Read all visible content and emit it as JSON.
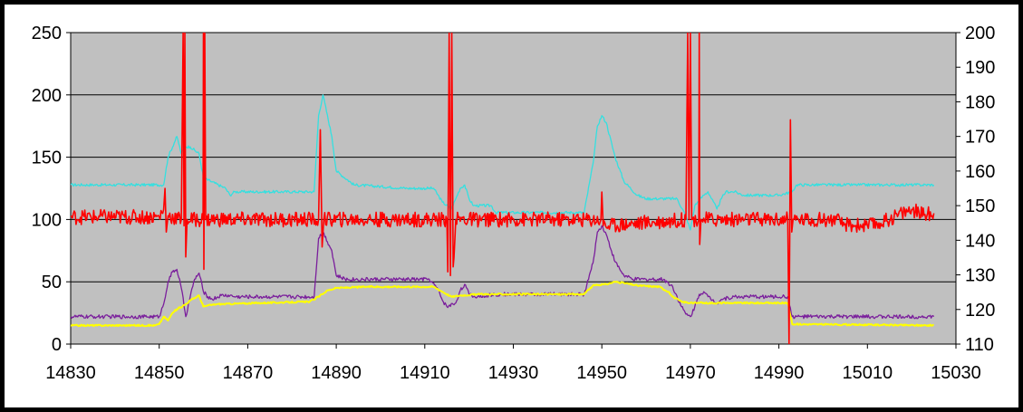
{
  "chart_data": {
    "type": "line",
    "title": "",
    "xlabel": "",
    "ylabel": "",
    "y2label": "",
    "grid": "horizontal",
    "legend": "none",
    "background_color": "#c0c0c0",
    "xlim": [
      14830,
      15030
    ],
    "ylim": [
      0,
      250
    ],
    "y2lim": [
      110,
      200
    ],
    "x_ticks": [
      "14830",
      "14850",
      "14870",
      "14890",
      "14910",
      "14930",
      "14950",
      "14970",
      "14990",
      "15010",
      "15030"
    ],
    "y_ticks": [
      "0",
      "50",
      "100",
      "150",
      "200",
      "250"
    ],
    "y2_ticks": [
      "110",
      "120",
      "130",
      "140",
      "150",
      "160",
      "170",
      "180",
      "190",
      "200"
    ],
    "series": [
      {
        "id": "cyan",
        "color": "#33e0e0",
        "axis": "right",
        "noise": 0.4,
        "points": [
          [
            14830,
            156
          ],
          [
            14851,
            156
          ],
          [
            14852,
            164
          ],
          [
            14854,
            170
          ],
          [
            14855,
            165
          ],
          [
            14856,
            167
          ],
          [
            14857,
            167
          ],
          [
            14859,
            165
          ],
          [
            14860,
            158
          ],
          [
            14865,
            155
          ],
          [
            14866,
            153
          ],
          [
            14867,
            154
          ],
          [
            14885,
            154
          ],
          [
            14886,
            176
          ],
          [
            14887,
            182
          ],
          [
            14889,
            170
          ],
          [
            14890,
            160
          ],
          [
            14894,
            156
          ],
          [
            14906,
            155
          ],
          [
            14912,
            155
          ],
          [
            14914,
            151
          ],
          [
            14916,
            149
          ],
          [
            14917,
            152
          ],
          [
            14918,
            155
          ],
          [
            14919,
            156
          ],
          [
            14920,
            152
          ],
          [
            14921,
            150
          ],
          [
            14925,
            150
          ],
          [
            14926,
            148
          ],
          [
            14946,
            148
          ],
          [
            14948,
            162
          ],
          [
            14949,
            173
          ],
          [
            14950,
            176
          ],
          [
            14951,
            174
          ],
          [
            14953,
            164
          ],
          [
            14955,
            157
          ],
          [
            14958,
            153
          ],
          [
            14960,
            152
          ],
          [
            14967,
            152
          ],
          [
            14969,
            147
          ],
          [
            14970,
            143
          ],
          [
            14971,
            150
          ],
          [
            14973,
            153
          ],
          [
            14974,
            154
          ],
          [
            14976,
            149
          ],
          [
            14977,
            152
          ],
          [
            14978,
            154
          ],
          [
            14980,
            154
          ],
          [
            14982,
            153
          ],
          [
            14990,
            153
          ],
          [
            14993,
            154
          ],
          [
            14994,
            156
          ],
          [
            15025,
            156
          ]
        ]
      },
      {
        "id": "purple",
        "color": "#7a1e9c",
        "axis": "left",
        "noise": 1.5,
        "points": [
          [
            14830,
            22
          ],
          [
            14850,
            22
          ],
          [
            14851,
            32
          ],
          [
            14852,
            50
          ],
          [
            14853,
            58
          ],
          [
            14854,
            60
          ],
          [
            14855,
            45
          ],
          [
            14856,
            22
          ],
          [
            14857,
            38
          ],
          [
            14858,
            52
          ],
          [
            14859,
            57
          ],
          [
            14860,
            42
          ],
          [
            14861,
            38
          ],
          [
            14862,
            36
          ],
          [
            14864,
            39
          ],
          [
            14866,
            39
          ],
          [
            14867,
            38
          ],
          [
            14885,
            38
          ],
          [
            14886,
            85
          ],
          [
            14887,
            90
          ],
          [
            14889,
            75
          ],
          [
            14890,
            55
          ],
          [
            14892,
            52
          ],
          [
            14907,
            52
          ],
          [
            14911,
            52
          ],
          [
            14913,
            44
          ],
          [
            14914,
            35
          ],
          [
            14915,
            30
          ],
          [
            14917,
            33
          ],
          [
            14918,
            43
          ],
          [
            14919,
            48
          ],
          [
            14920,
            40
          ],
          [
            14921,
            38
          ],
          [
            14927,
            40
          ],
          [
            14946,
            40
          ],
          [
            14948,
            65
          ],
          [
            14949,
            90
          ],
          [
            14950,
            95
          ],
          [
            14951,
            88
          ],
          [
            14953,
            66
          ],
          [
            14955,
            55
          ],
          [
            14957,
            52
          ],
          [
            14960,
            52
          ],
          [
            14964,
            52
          ],
          [
            14966,
            46
          ],
          [
            14968,
            30
          ],
          [
            14969,
            24
          ],
          [
            14970,
            22
          ],
          [
            14971,
            30
          ],
          [
            14972,
            40
          ],
          [
            14973,
            42
          ],
          [
            14974,
            38
          ],
          [
            14976,
            33
          ],
          [
            14977,
            36
          ],
          [
            14980,
            38
          ],
          [
            14992,
            38
          ],
          [
            14993,
            22
          ],
          [
            15025,
            22
          ]
        ]
      },
      {
        "id": "yellow",
        "color": "#ffff00",
        "axis": "left",
        "noise": 0.6,
        "points": [
          [
            14830,
            15
          ],
          [
            14849,
            15
          ],
          [
            14850,
            16
          ],
          [
            14851,
            22
          ],
          [
            14852,
            19
          ],
          [
            14853,
            25
          ],
          [
            14854,
            28
          ],
          [
            14856,
            32
          ],
          [
            14857,
            35
          ],
          [
            14859,
            39
          ],
          [
            14860,
            30
          ],
          [
            14861,
            31
          ],
          [
            14863,
            32
          ],
          [
            14873,
            33
          ],
          [
            14884,
            34
          ],
          [
            14886,
            38
          ],
          [
            14888,
            43
          ],
          [
            14890,
            45
          ],
          [
            14897,
            46
          ],
          [
            14912,
            46
          ],
          [
            14914,
            42
          ],
          [
            14916,
            38
          ],
          [
            14918,
            39
          ],
          [
            14922,
            40
          ],
          [
            14928,
            40
          ],
          [
            14946,
            40
          ],
          [
            14948,
            47
          ],
          [
            14951,
            48
          ],
          [
            14953,
            50
          ],
          [
            14955,
            49
          ],
          [
            14958,
            47
          ],
          [
            14963,
            46
          ],
          [
            14965,
            42
          ],
          [
            14966,
            38
          ],
          [
            14968,
            34
          ],
          [
            14970,
            33
          ],
          [
            14972,
            33
          ],
          [
            14992,
            33
          ],
          [
            14993,
            16
          ],
          [
            15025,
            15
          ]
        ]
      },
      {
        "id": "red",
        "color": "#ff0000",
        "axis": "left",
        "noise": 6,
        "points": [
          [
            14830,
            102
          ],
          [
            14850,
            102
          ],
          [
            14851,
            108
          ],
          [
            14851.3,
            125
          ],
          [
            14851.6,
            90
          ],
          [
            14852,
            103
          ],
          [
            14855,
            100
          ],
          [
            14855.4,
            250
          ],
          [
            14855.6,
            95
          ],
          [
            14855.8,
            250
          ],
          [
            14856,
            70
          ],
          [
            14856.3,
            100
          ],
          [
            14859.9,
            100
          ],
          [
            14860,
            250
          ],
          [
            14860.1,
            60
          ],
          [
            14860.3,
            250
          ],
          [
            14860.5,
            100
          ],
          [
            14886,
            100
          ],
          [
            14886.4,
            172
          ],
          [
            14886.8,
            78
          ],
          [
            14887.2,
            100
          ],
          [
            14915,
            100
          ],
          [
            14915.2,
            58
          ],
          [
            14915.5,
            250
          ],
          [
            14915.8,
            55
          ],
          [
            14916.1,
            250
          ],
          [
            14916.4,
            62
          ],
          [
            14917,
            100
          ],
          [
            14949.8,
            100
          ],
          [
            14950,
            122
          ],
          [
            14950.3,
            95
          ],
          [
            14969,
            100
          ],
          [
            14969.4,
            250
          ],
          [
            14969.7,
            100
          ],
          [
            14970,
            250
          ],
          [
            14970.3,
            100
          ],
          [
            14971.9,
            100
          ],
          [
            14972,
            250
          ],
          [
            14972.1,
            80
          ],
          [
            14972.4,
            100
          ],
          [
            14992,
            100
          ],
          [
            14992.3,
            0
          ],
          [
            14992.6,
            180
          ],
          [
            14992.9,
            90
          ],
          [
            14993.2,
            100
          ],
          [
            15003,
            100
          ],
          [
            15004,
            96
          ],
          [
            15010,
            95
          ],
          [
            15013,
            97
          ],
          [
            15017,
            104
          ],
          [
            15020,
            108
          ],
          [
            15023,
            104
          ],
          [
            15025,
            105
          ]
        ]
      }
    ]
  }
}
